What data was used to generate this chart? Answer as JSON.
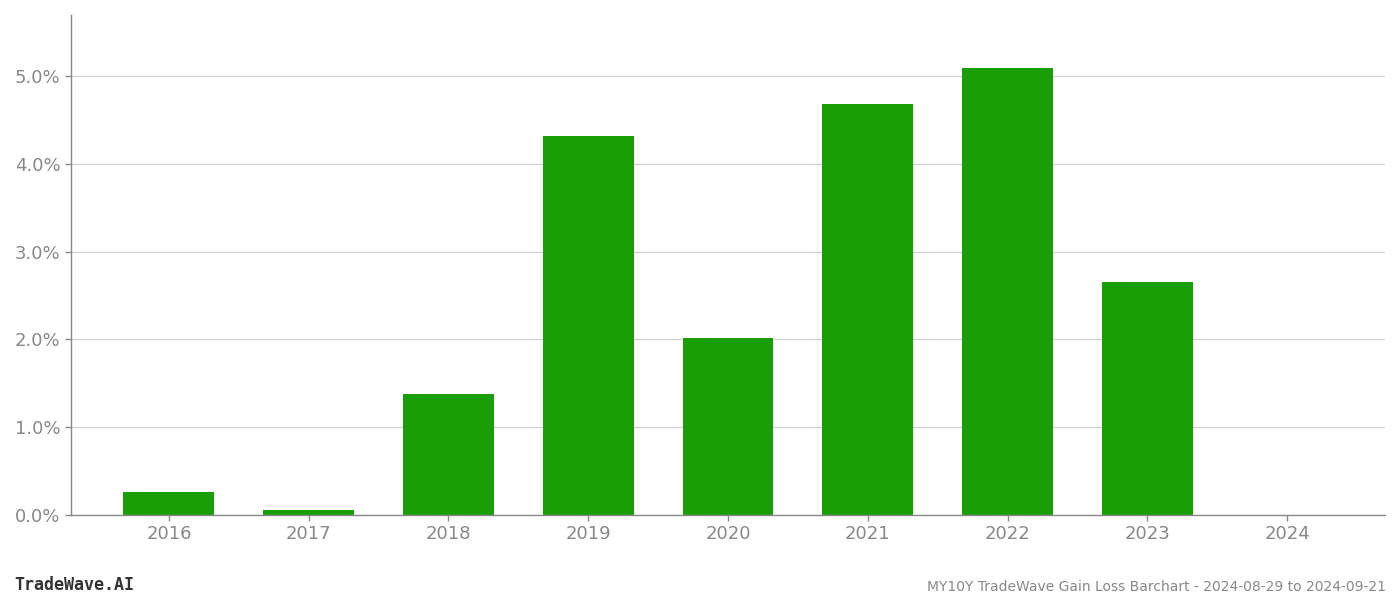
{
  "categories": [
    "2016",
    "2017",
    "2018",
    "2019",
    "2020",
    "2021",
    "2022",
    "2023",
    "2024"
  ],
  "values": [
    0.0026,
    0.00055,
    0.0138,
    0.0432,
    0.0201,
    0.0468,
    0.051,
    0.0265,
    0.0
  ],
  "bar_color": "#1a9e06",
  "background_color": "#ffffff",
  "grid_color": "#cccccc",
  "axis_color": "#888888",
  "title": "MY10Y TradeWave Gain Loss Barchart - 2024-08-29 to 2024-09-21",
  "watermark": "TradeWave.AI",
  "ylim": [
    0,
    0.057
  ],
  "ytick_values": [
    0.0,
    0.01,
    0.02,
    0.03,
    0.04,
    0.05
  ],
  "ytick_labels": [
    "0.0%",
    "1.0%",
    "2.0%",
    "3.0%",
    "4.0%",
    "5.0%"
  ],
  "figsize": [
    14.0,
    6.0
  ],
  "dpi": 100,
  "bar_width": 0.65
}
